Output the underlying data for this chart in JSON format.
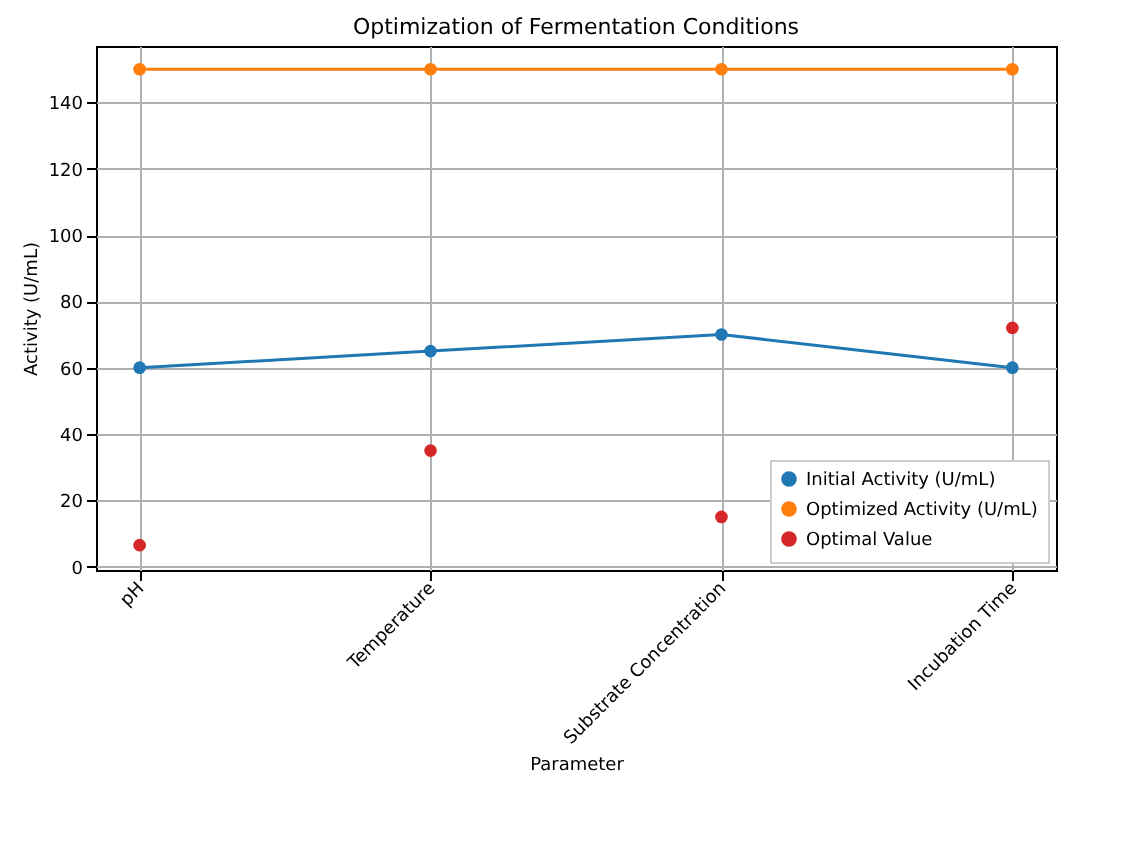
{
  "chart_data": {
    "type": "line",
    "title": "Optimization of Fermentation Conditions",
    "xlabel": "Parameter",
    "ylabel": "Activity (U/mL)",
    "categories": [
      "pH",
      "Temperature",
      "Substrate Concentration",
      "Incubation Time"
    ],
    "series": [
      {
        "name": "Initial Activity (U/mL)",
        "color": "#1f77b4",
        "type": "line",
        "marker": "circle",
        "values": [
          60,
          65,
          70,
          60
        ]
      },
      {
        "name": "Optimized Activity (U/mL)",
        "color": "#ff7f0e",
        "type": "line",
        "marker": "circle",
        "values": [
          150,
          150,
          150,
          150
        ]
      },
      {
        "name": "Optimal Value",
        "color": "#d62728",
        "type": "scatter",
        "marker": "circle",
        "values": [
          6.5,
          35,
          15,
          72
        ]
      }
    ],
    "ylim": [
      -1,
      157
    ],
    "yticks": [
      0,
      20,
      40,
      60,
      80,
      100,
      120,
      140
    ],
    "grid": true,
    "legend": "bottom right"
  }
}
